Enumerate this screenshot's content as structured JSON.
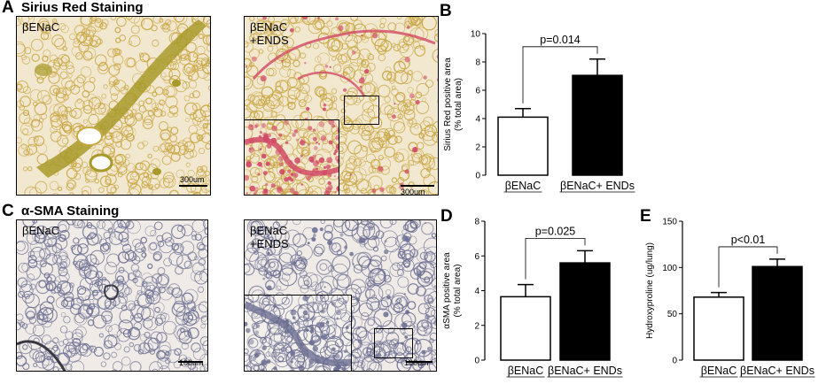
{
  "panels": {
    "A": {
      "letter": "A",
      "title": "Sirius Red Staining"
    },
    "B": {
      "letter": "B"
    },
    "C": {
      "letter": "C",
      "title": "α-SMA Staining"
    },
    "D": {
      "letter": "D"
    },
    "E": {
      "letter": "E"
    }
  },
  "images": {
    "a_left": {
      "label": "βENaC",
      "scale": "300um"
    },
    "a_right": {
      "label": "βENaC\n+ENDS",
      "scale": "300um"
    },
    "c_left": {
      "label": "βENaC",
      "scale": "100um"
    },
    "c_right": {
      "label": "βENaC\n+ENDS",
      "scale": "100um"
    }
  },
  "colors": {
    "sirius_bg": "#f2e7cf",
    "sirius_tissue": "#c9a743",
    "sirius_vessel": "#a89a2a",
    "sirius_red": "#d24a66",
    "sma_bg": "#f0ebe6",
    "sma_tissue": "#6b6e92",
    "sma_dark": "#3a3a44"
  },
  "chart_data": [
    {
      "id": "B",
      "type": "bar",
      "categories": [
        "βENaC",
        "βENaC+ ENDs"
      ],
      "values": [
        4.1,
        7.05
      ],
      "errors": [
        0.6,
        1.15
      ],
      "bar_colors": [
        "#ffffff",
        "#000000"
      ],
      "ylabel": "Sirius Red positive area\n(% total area)",
      "ylim": [
        0,
        10
      ],
      "yticks": [
        0,
        2,
        4,
        6,
        8,
        10
      ],
      "annotation": "p=0.014"
    },
    {
      "id": "D",
      "type": "bar",
      "categories": [
        "βENaC",
        "βENaC+ ENDs"
      ],
      "values": [
        3.65,
        5.6
      ],
      "errors": [
        0.7,
        0.7
      ],
      "bar_colors": [
        "#ffffff",
        "#000000"
      ],
      "ylabel": "αSMA positive area\n(% total area)",
      "ylim": [
        0,
        8
      ],
      "yticks": [
        0,
        2,
        4,
        6,
        8
      ],
      "annotation": "p=0.025"
    },
    {
      "id": "E",
      "type": "bar",
      "categories": [
        "βENaC",
        "βENaC+ ENDs"
      ],
      "values": [
        68,
        101
      ],
      "errors": [
        5,
        8
      ],
      "bar_colors": [
        "#ffffff",
        "#000000"
      ],
      "ylabel": "Hydroxyproline (ug/lung)",
      "ylim": [
        0,
        150
      ],
      "yticks": [
        0,
        50,
        100,
        150
      ],
      "annotation": "p<0.01"
    }
  ]
}
